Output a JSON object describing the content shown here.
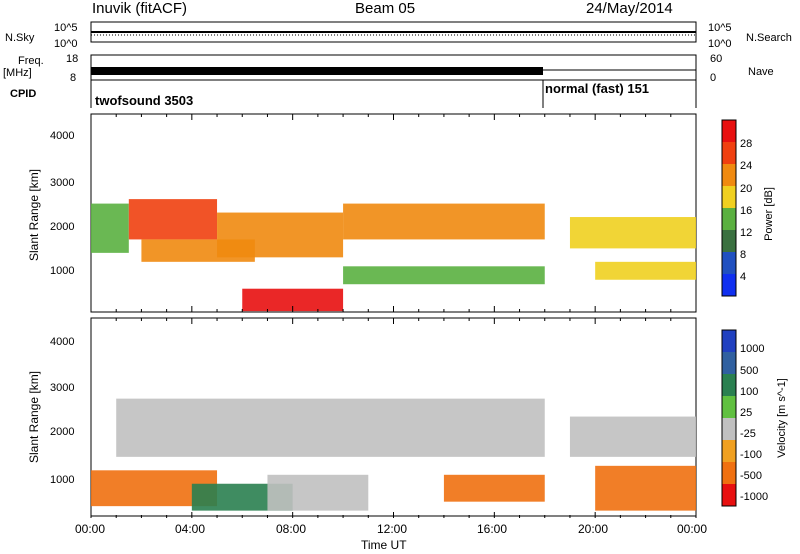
{
  "header": {
    "station": "Inuvik (fitACF)",
    "beam": "Beam 05",
    "date": "24/May/2014"
  },
  "top_panels": {
    "nsky_label": "N.Sky",
    "nsearch_label": "N.Search",
    "freq_label": "Freq.",
    "freq_unit": "[MHz]",
    "nave_label": "Nave",
    "cpid_label": "CPID",
    "noise_ticks_left": [
      "10^5",
      "10^0"
    ],
    "noise_ticks_right": [
      "10^5",
      "10^0"
    ],
    "freq_ticks_left": [
      "18",
      "8"
    ],
    "nave_ticks_right": [
      "60",
      "0"
    ],
    "cpid_segments": [
      {
        "label": "twofsound 3503",
        "start_hour": 0,
        "end_hour": 18
      },
      {
        "label": "normal (fast) 151",
        "start_hour": 18,
        "end_hour": 24
      }
    ]
  },
  "axes": {
    "xlabel": "Time UT",
    "ylabel": "Slant Range [km]",
    "x_ticks": [
      "00:00",
      "04:00",
      "08:00",
      "12:00",
      "16:00",
      "20:00",
      "00:00"
    ],
    "y_ticks": [
      "1000",
      "2000",
      "3000",
      "4000"
    ]
  },
  "colorbars": {
    "power": {
      "label": "Power [dB]",
      "ticks": [
        "4",
        "8",
        "12",
        "16",
        "20",
        "24",
        "28"
      ],
      "colors": [
        "#1030f0",
        "#2050c0",
        "#3a7040",
        "#5ab040",
        "#f0d020",
        "#f08a10",
        "#f04010",
        "#e81010"
      ]
    },
    "velocity": {
      "label": "Velocity [m s^-1]",
      "ticks": [
        "1000",
        "500",
        "100",
        "25",
        "-25",
        "-100",
        "-500",
        "-1000"
      ],
      "colors": [
        "#2040c0",
        "#3060a0",
        "#2a8050",
        "#60c040",
        "#c0c0c0",
        "#f0a020",
        "#f07010",
        "#e81010"
      ]
    }
  },
  "chart_data": [
    {
      "type": "heatmap",
      "title": "Power",
      "xlabel": "Time UT",
      "ylabel": "Slant Range [km]",
      "xlim": [
        0,
        24
      ],
      "ylim": [
        180,
        4600
      ],
      "x_unit": "hours UT",
      "colorbar_label": "Power [dB]",
      "bands": [
        {
          "t0": 0.0,
          "t1": 1.5,
          "r0": 1500,
          "r1": 2600,
          "level": 12
        },
        {
          "t0": 1.5,
          "t1": 5.0,
          "r0": 1800,
          "r1": 2700,
          "level": 24
        },
        {
          "t0": 2.0,
          "t1": 6.5,
          "r0": 1300,
          "r1": 1800,
          "level": 20
        },
        {
          "t0": 5.0,
          "t1": 10.0,
          "r0": 1400,
          "r1": 2400,
          "level": 20
        },
        {
          "t0": 6.0,
          "t1": 10.0,
          "r0": 200,
          "r1": 700,
          "level": 28
        },
        {
          "t0": 10.0,
          "t1": 18.0,
          "r0": 1800,
          "r1": 2600,
          "level": 20
        },
        {
          "t0": 10.0,
          "t1": 18.0,
          "r0": 800,
          "r1": 1200,
          "level": 12
        },
        {
          "t0": 19.0,
          "t1": 24.0,
          "r0": 1600,
          "r1": 2300,
          "level": 16
        },
        {
          "t0": 20.0,
          "t1": 24.0,
          "r0": 900,
          "r1": 1300,
          "level": 16
        }
      ]
    },
    {
      "type": "heatmap",
      "title": "Velocity",
      "xlabel": "Time UT",
      "ylabel": "Slant Range [km]",
      "xlim": [
        0,
        24
      ],
      "ylim": [
        180,
        4600
      ],
      "x_unit": "hours UT",
      "colorbar_label": "Velocity [m s^-1]",
      "bands": [
        {
          "t0": 1.0,
          "t1": 18.0,
          "r0": 1500,
          "r1": 2800,
          "level": 0
        },
        {
          "t0": 0.0,
          "t1": 5.0,
          "r0": 400,
          "r1": 1200,
          "level": -300
        },
        {
          "t0": 4.0,
          "t1": 8.0,
          "r0": 300,
          "r1": 900,
          "level": 100
        },
        {
          "t0": 7.0,
          "t1": 11.0,
          "r0": 300,
          "r1": 1100,
          "level": 0
        },
        {
          "t0": 14.0,
          "t1": 18.0,
          "r0": 500,
          "r1": 1100,
          "level": -300
        },
        {
          "t0": 19.0,
          "t1": 24.0,
          "r0": 1500,
          "r1": 2400,
          "level": 0
        },
        {
          "t0": 20.0,
          "t1": 24.0,
          "r0": 300,
          "r1": 1300,
          "level": -300
        }
      ]
    }
  ]
}
